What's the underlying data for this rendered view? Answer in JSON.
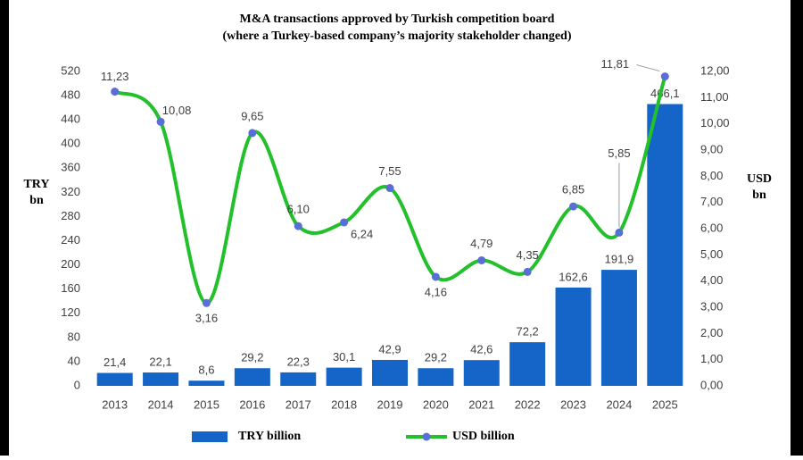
{
  "chart_data": {
    "type": "combo",
    "title": "M&A transactions approved by Turkish competition board",
    "subtitle": "(where a Turkey-based company’s majority stakeholder changed)",
    "y_label": "TRY bn",
    "y2_label": "USD bn",
    "categories": [
      "2013",
      "2014",
      "2015",
      "2016",
      "2017",
      "2018",
      "2019",
      "2020",
      "2021",
      "2022",
      "2023",
      "2024",
      "2025"
    ],
    "series": [
      {
        "name": "TRY billion",
        "type": "bar",
        "color": "#1565c8",
        "values": [
          21.4,
          22.1,
          8.6,
          29.2,
          22.3,
          30.1,
          42.9,
          29.2,
          42.6,
          72.2,
          162.6,
          191.9,
          466.1
        ],
        "value_labels": [
          "21,4",
          "22,1",
          "8,6",
          "29,2",
          "22,3",
          "30,1",
          "42,9",
          "29,2",
          "42,6",
          "72,2",
          "162,6",
          "191,9",
          "466,1"
        ]
      },
      {
        "name": "USD billion",
        "type": "line",
        "axis": "y2",
        "color": "#22c02a",
        "marker_color": "#5a6fd6",
        "values": [
          11.23,
          10.08,
          3.16,
          9.65,
          6.1,
          6.24,
          7.55,
          4.16,
          4.79,
          4.35,
          6.85,
          5.85,
          11.81
        ],
        "value_labels": [
          "11,23",
          "10,08",
          "3,16",
          "9,65",
          "6,10",
          "6,24",
          "7,55",
          "4,16",
          "4,79",
          "4,35",
          "6,85",
          "5,85",
          "11,81"
        ]
      }
    ],
    "ylim": [
      0,
      520
    ],
    "yticks": [
      0,
      40,
      80,
      120,
      160,
      200,
      240,
      280,
      320,
      360,
      400,
      440,
      480,
      520
    ],
    "y2lim": [
      0,
      12
    ],
    "y2ticks": [
      {
        "value": 0,
        "label": "0,00"
      },
      {
        "value": 1,
        "label": "1,00"
      },
      {
        "value": 2,
        "label": "2,00"
      },
      {
        "value": 3,
        "label": "3,00"
      },
      {
        "value": 4,
        "label": "4,00"
      },
      {
        "value": 5,
        "label": "5,00"
      },
      {
        "value": 6,
        "label": "6,00"
      },
      {
        "value": 7,
        "label": "7,00"
      },
      {
        "value": 8,
        "label": "8,00"
      },
      {
        "value": 9,
        "label": "9,00"
      },
      {
        "value": 10,
        "label": "10,00"
      },
      {
        "value": 11,
        "label": "11,00"
      },
      {
        "value": 12,
        "label": "12,00"
      }
    ],
    "grid": false
  }
}
